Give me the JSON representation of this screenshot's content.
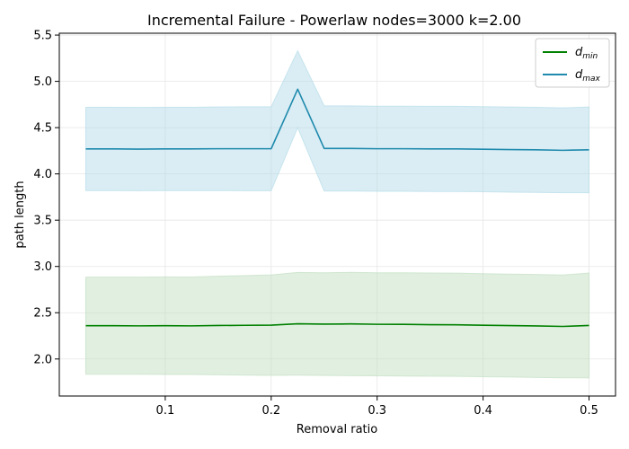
{
  "chart_data": {
    "type": "line",
    "title": "Incremental Failure - Powerlaw nodes=3000 k=2.00",
    "xlabel": "Removal ratio",
    "ylabel": "path length",
    "xlim": [
      0.0,
      0.525
    ],
    "ylim": [
      1.6,
      5.52
    ],
    "xticks": [
      0.1,
      0.2,
      0.3,
      0.4,
      0.5
    ],
    "xtick_labels": [
      "0.1",
      "0.2",
      "0.3",
      "0.4",
      "0.5"
    ],
    "yticks": [
      2.0,
      2.5,
      3.0,
      3.5,
      4.0,
      4.5,
      5.0,
      5.5
    ],
    "ytick_labels": [
      "2.0",
      "2.5",
      "3.0",
      "3.5",
      "4.0",
      "4.5",
      "5.0",
      "5.5"
    ],
    "grid": true,
    "legend_position": "top-right",
    "x": [
      0.025,
      0.05,
      0.075,
      0.1,
      0.125,
      0.15,
      0.175,
      0.2,
      0.225,
      0.25,
      0.275,
      0.3,
      0.325,
      0.35,
      0.375,
      0.4,
      0.425,
      0.45,
      0.475,
      0.5
    ],
    "series": [
      {
        "name": "d_min",
        "legend_main": "d",
        "legend_sub": "min",
        "color": "#008000",
        "fill_color": "#bcdcbc",
        "values": [
          2.36,
          2.36,
          2.358,
          2.36,
          2.358,
          2.362,
          2.364,
          2.366,
          2.38,
          2.377,
          2.379,
          2.375,
          2.374,
          2.371,
          2.37,
          2.365,
          2.361,
          2.357,
          2.352,
          2.362
        ],
        "lower": [
          1.835,
          1.835,
          1.835,
          1.833,
          1.833,
          1.829,
          1.826,
          1.823,
          1.825,
          1.822,
          1.82,
          1.818,
          1.816,
          1.813,
          1.812,
          1.808,
          1.805,
          1.8,
          1.797,
          1.795
        ],
        "upper": [
          2.885,
          2.885,
          2.884,
          2.887,
          2.886,
          2.895,
          2.901,
          2.909,
          2.935,
          2.932,
          2.936,
          2.932,
          2.932,
          2.929,
          2.928,
          2.922,
          2.917,
          2.914,
          2.907,
          2.929
        ]
      },
      {
        "name": "d_max",
        "legend_main": "d",
        "legend_sub": "max",
        "color": "#1f8aad",
        "fill_color": "#add8e6",
        "values": [
          4.27,
          4.27,
          4.268,
          4.27,
          4.27,
          4.272,
          4.272,
          4.272,
          4.915,
          4.275,
          4.275,
          4.272,
          4.272,
          4.27,
          4.27,
          4.267,
          4.263,
          4.26,
          4.255,
          4.26
        ],
        "lower": [
          3.82,
          3.82,
          3.818,
          3.82,
          3.82,
          3.82,
          3.818,
          3.818,
          4.5,
          3.815,
          3.815,
          3.812,
          3.812,
          3.81,
          3.81,
          3.807,
          3.803,
          3.8,
          3.797,
          3.797
        ],
        "upper": [
          4.72,
          4.72,
          4.718,
          4.72,
          4.72,
          4.724,
          4.726,
          4.726,
          5.33,
          4.735,
          4.735,
          4.732,
          4.732,
          4.73,
          4.73,
          4.727,
          4.723,
          4.72,
          4.713,
          4.723
        ]
      }
    ]
  }
}
